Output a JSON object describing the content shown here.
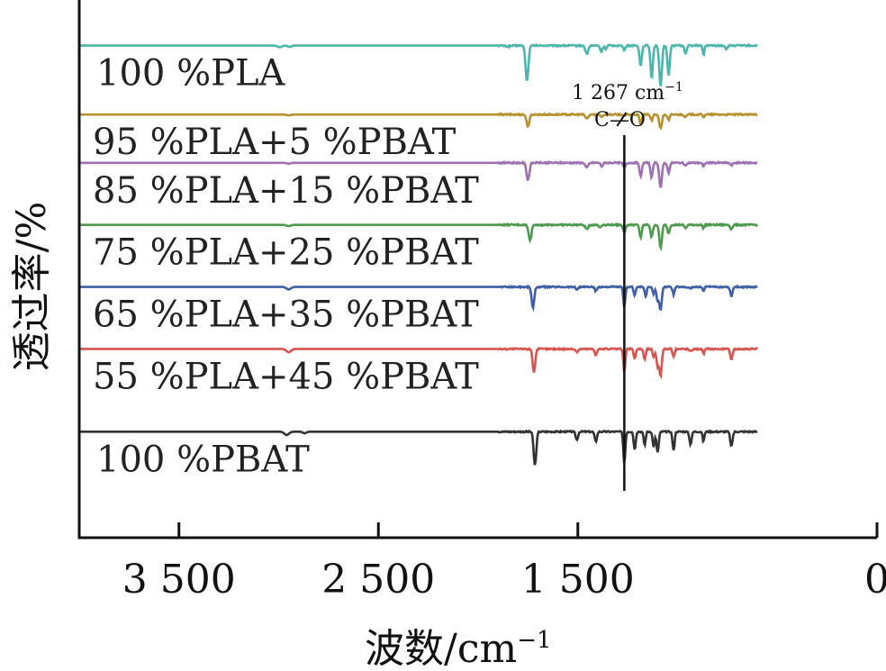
{
  "chart_data": {
    "type": "line",
    "title": "",
    "xlabel": "波数/cm",
    "xlabel_sup": "−1",
    "ylabel": "透过率/%",
    "xlim": [
      4000,
      0
    ],
    "x_ticks": [
      3500,
      2500,
      1500,
      0
    ],
    "x_tick_labels": [
      "3 500",
      "2 500",
      "1 500",
      "0"
    ],
    "grid": false,
    "legend": "inline labels above each curve",
    "annotation": {
      "wavenumber": 1267,
      "label_line1": "1 267 cm",
      "label_sup": "−1",
      "label_line2": "C—O"
    },
    "series": [
      {
        "name": "100 %PLA",
        "color": "#4db6ac",
        "baseline": 0.92,
        "dips": [
          [
            2995,
            0.04,
            14
          ],
          [
            2945,
            0.03,
            12
          ],
          [
            1850,
            0.02,
            20
          ],
          [
            1755,
            0.86,
            10
          ],
          [
            1455,
            0.2,
            10
          ],
          [
            1382,
            0.15,
            8
          ],
          [
            1360,
            0.1,
            6
          ],
          [
            1267,
            0.1,
            8
          ],
          [
            1185,
            0.5,
            8
          ],
          [
            1130,
            0.8,
            8
          ],
          [
            1085,
            1.0,
            9
          ],
          [
            1045,
            0.72,
            8
          ],
          [
            960,
            0.2,
            8
          ],
          [
            870,
            0.24,
            6
          ],
          [
            755,
            0.08,
            8
          ]
        ]
      },
      {
        "name": "95 %PLA+5 %PBAT",
        "color": "#b8902e",
        "baseline": 0.72,
        "dips": [
          [
            2950,
            0.02,
            14
          ],
          [
            1750,
            0.28,
            10
          ],
          [
            1455,
            0.1,
            10
          ],
          [
            1380,
            0.05,
            8
          ],
          [
            1267,
            0.04,
            8
          ],
          [
            1185,
            0.22,
            8
          ],
          [
            1130,
            0.14,
            8
          ],
          [
            1085,
            0.34,
            9
          ],
          [
            1045,
            0.14,
            8
          ],
          [
            960,
            0.06,
            8
          ],
          [
            870,
            0.06,
            6
          ]
        ]
      },
      {
        "name": "85 %PLA+15 %PBAT",
        "color": "#a070b4",
        "baseline": 0.58,
        "dips": [
          [
            2950,
            0.02,
            14
          ],
          [
            1750,
            0.42,
            10
          ],
          [
            1455,
            0.12,
            10
          ],
          [
            1380,
            0.08,
            8
          ],
          [
            1267,
            0.12,
            8
          ],
          [
            1185,
            0.34,
            8
          ],
          [
            1130,
            0.36,
            8
          ],
          [
            1085,
            0.6,
            9
          ],
          [
            1045,
            0.24,
            8
          ],
          [
            960,
            0.08,
            8
          ],
          [
            870,
            0.1,
            6
          ],
          [
            730,
            0.06,
            8
          ]
        ]
      },
      {
        "name": "75 %PLA+25 %PBAT",
        "color": "#4c9a4c",
        "baseline": 0.4,
        "dips": [
          [
            2950,
            0.03,
            14
          ],
          [
            1740,
            0.36,
            10
          ],
          [
            1455,
            0.1,
            10
          ],
          [
            1390,
            0.06,
            8
          ],
          [
            1267,
            0.18,
            8
          ],
          [
            1185,
            0.3,
            8
          ],
          [
            1130,
            0.3,
            8
          ],
          [
            1085,
            0.56,
            9
          ],
          [
            1045,
            0.2,
            8
          ],
          [
            960,
            0.08,
            8
          ],
          [
            870,
            0.08,
            6
          ],
          [
            730,
            0.1,
            8
          ]
        ]
      },
      {
        "name": "65 %PLA+35 %PBAT",
        "color": "#3f5fa6",
        "baseline": 0.22,
        "dips": [
          [
            2950,
            0.06,
            16
          ],
          [
            1725,
            0.52,
            9
          ],
          [
            1505,
            0.06,
            8
          ],
          [
            1410,
            0.1,
            8
          ],
          [
            1267,
            0.5,
            7
          ],
          [
            1215,
            0.2,
            7
          ],
          [
            1160,
            0.24,
            7
          ],
          [
            1120,
            0.18,
            7
          ],
          [
            1100,
            0.34,
            8
          ],
          [
            1085,
            0.56,
            8
          ],
          [
            1020,
            0.18,
            7
          ],
          [
            935,
            0.04,
            8
          ],
          [
            870,
            0.1,
            6
          ],
          [
            730,
            0.22,
            8
          ]
        ]
      },
      {
        "name": "55 %PLA+45 %PBAT",
        "color": "#d9534f",
        "baseline": 0.04,
        "dips": [
          [
            2950,
            0.08,
            16
          ],
          [
            1720,
            0.56,
            9
          ],
          [
            1505,
            0.08,
            8
          ],
          [
            1410,
            0.14,
            8
          ],
          [
            1267,
            0.56,
            7
          ],
          [
            1215,
            0.24,
            7
          ],
          [
            1165,
            0.26,
            7
          ],
          [
            1120,
            0.2,
            7
          ],
          [
            1100,
            0.42,
            8
          ],
          [
            1085,
            0.64,
            8
          ],
          [
            1020,
            0.2,
            7
          ],
          [
            935,
            0.06,
            8
          ],
          [
            870,
            0.12,
            6
          ],
          [
            730,
            0.26,
            8
          ]
        ]
      },
      {
        "name": "100 %PBAT",
        "color": "#333333",
        "baseline": -0.2,
        "dips": [
          [
            2960,
            0.08,
            16
          ],
          [
            2870,
            0.04,
            12
          ],
          [
            1715,
            0.82,
            9
          ],
          [
            1505,
            0.2,
            8
          ],
          [
            1410,
            0.24,
            8
          ],
          [
            1267,
            0.76,
            7
          ],
          [
            1215,
            0.44,
            7
          ],
          [
            1165,
            0.32,
            7
          ],
          [
            1120,
            0.36,
            7
          ],
          [
            1100,
            0.5,
            8
          ],
          [
            1020,
            0.46,
            7
          ],
          [
            935,
            0.3,
            8
          ],
          [
            870,
            0.24,
            6
          ],
          [
            730,
            0.36,
            8
          ]
        ]
      }
    ]
  }
}
